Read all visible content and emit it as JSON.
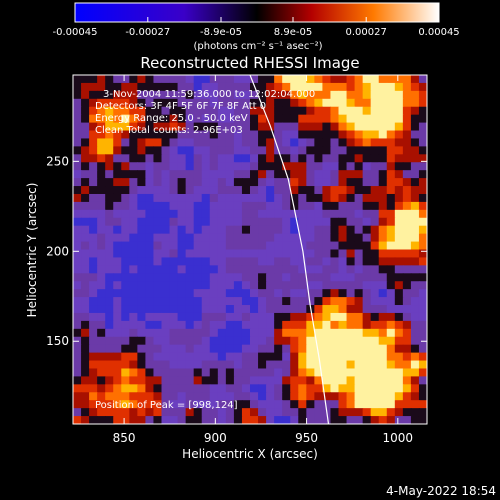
{
  "chart_data": {
    "type": "heatmap",
    "title": "Reconstructed RHESSI Image",
    "xlabel": "Heliocentric X (arcsec)",
    "ylabel": "Heliocentric Y (arcsec)",
    "xlim": [
      822,
      1016
    ],
    "ylim": [
      104,
      298
    ],
    "x_ticks": [
      850,
      900,
      950,
      1000
    ],
    "y_ticks": [
      150,
      200,
      250
    ],
    "colorbar": {
      "ticks": [
        "-0.00045",
        "-0.00027",
        "-8.9e-05",
        "8.9e-05",
        "0.00027",
        "0.00045"
      ],
      "tick_values": [
        -0.00045,
        -0.00027,
        -8.9e-05,
        8.9e-05,
        0.00027,
        0.00045
      ],
      "range": [
        -0.00045,
        0.00045
      ],
      "unit_label": "(photons cm⁻² s⁻¹ asec⁻²)"
    },
    "annotations": {
      "time": "3-Nov-2004 11:59:36.000 to 12:02:04.000",
      "detectors": "Detectors: 3F 4F 5F 6F 7F 8F Att 0",
      "energy": "Energy Range: 25.0 - 50.0 keV",
      "clean": "Clean     Total counts: 2.96E+03",
      "peak": "Position of Peak = [998,124]"
    },
    "peak": [
      998,
      124
    ],
    "limb_curve": [
      [
        919,
        298
      ],
      [
        930,
        270
      ],
      [
        940,
        240
      ],
      [
        948,
        200
      ],
      [
        952,
        170
      ],
      [
        957,
        140
      ],
      [
        962,
        104
      ]
    ],
    "hot_regions": [
      {
        "x": 990,
        "y": 130,
        "strength": 1.0
      },
      {
        "x": 960,
        "y": 145,
        "strength": 0.85
      },
      {
        "x": 1005,
        "y": 215,
        "strength": 0.75
      },
      {
        "x": 990,
        "y": 280,
        "strength": 0.8
      },
      {
        "x": 948,
        "y": 295,
        "strength": 0.6
      },
      {
        "x": 845,
        "y": 265,
        "strength": 0.55
      },
      {
        "x": 845,
        "y": 125,
        "strength": 0.6
      }
    ]
  },
  "footer_date": "4-May-2022 18:54"
}
